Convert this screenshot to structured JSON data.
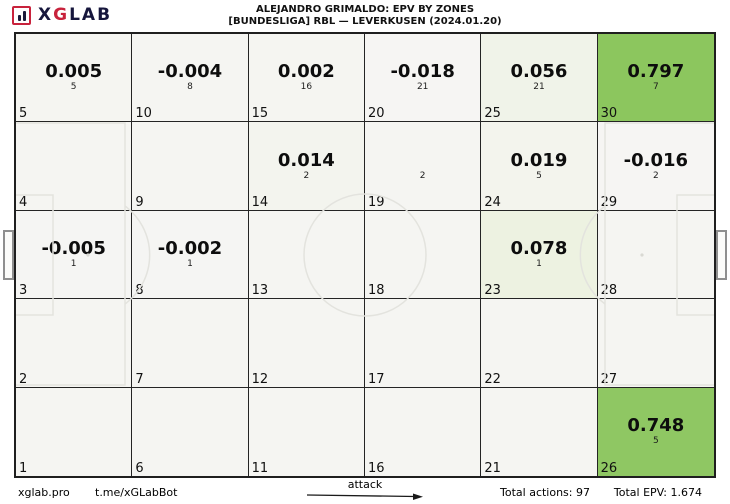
{
  "header": {
    "logo": {
      "icon": "bar-chart-icon",
      "x": "X",
      "g": "G",
      "lab": "LAB"
    },
    "title_line1": "ALEJANDRO GRIMALDO: EPV BY ZONES",
    "title_line2": "[BUNDESLIGA] RBL —  LEVERKUSEN (2024.01.20)"
  },
  "footer": {
    "site": "xglab.pro",
    "telegram": "t.me/xGLabBot",
    "attack_label": "attack",
    "total_actions": "Total actions: 97",
    "total_epv": "Total EPV: 1.674"
  },
  "colors": {
    "grid_line": "#242424",
    "pitch_border": "#1f1f1f",
    "cell_default": "#f5f5f2",
    "green_strong": "#8cc65e",
    "green_light": "#edf2e1",
    "pitch_marking": "#e3e3de",
    "brand_navy": "#16163c",
    "brand_red": "#c8223c"
  },
  "chart_data": {
    "type": "heatmap",
    "title": "ALEJANDRO GRIMALDO: EPV BY ZONES",
    "subtitle": "[BUNDESLIGA] RBL — LEVERKUSEN (2024.01.20)",
    "grid": {
      "cols": 6,
      "rows": 5,
      "numbering": "column-major, zone 1 at bottom-left, zone 30 at top-right"
    },
    "attack_direction": "left-to-right",
    "totals": {
      "actions": 97,
      "epv": 1.674
    },
    "legend_note": "each zone shows EPV value (bold), action count (small, below), zone number (bottom-left)",
    "zones_display_order": "row-major from top-left",
    "zones": [
      {
        "num": 5,
        "value": "0.005",
        "count": "5",
        "bg": "#f5f5f1"
      },
      {
        "num": 10,
        "value": "-0.004",
        "count": "8",
        "bg": "#f5f5f2"
      },
      {
        "num": 15,
        "value": "0.002",
        "count": "16",
        "bg": "#f5f5f1"
      },
      {
        "num": 20,
        "value": "-0.018",
        "count": "21",
        "bg": "#f6f5f3"
      },
      {
        "num": 25,
        "value": "0.056",
        "count": "21",
        "bg": "#f0f3e9"
      },
      {
        "num": 30,
        "value": "0.797",
        "count": "7",
        "bg": "#8cc65e"
      },
      {
        "num": 4,
        "value": "",
        "count": "",
        "bg": "#f5f5f2"
      },
      {
        "num": 9,
        "value": "",
        "count": "",
        "bg": "#f5f5f2"
      },
      {
        "num": 14,
        "value": "0.014",
        "count": "2",
        "bg": "#f3f4ee"
      },
      {
        "num": 19,
        "value": "",
        "count": "2",
        "bg": "#f5f5f2"
      },
      {
        "num": 24,
        "value": "0.019",
        "count": "5",
        "bg": "#f3f4ed"
      },
      {
        "num": 29,
        "value": "-0.016",
        "count": "2",
        "bg": "#f6f5f3"
      },
      {
        "num": 3,
        "value": "-0.005",
        "count": "1",
        "bg": "#f5f5f3"
      },
      {
        "num": 8,
        "value": "-0.002",
        "count": "1",
        "bg": "#f5f5f3"
      },
      {
        "num": 13,
        "value": "",
        "count": "",
        "bg": "#f5f5f2"
      },
      {
        "num": 18,
        "value": "",
        "count": "",
        "bg": "#f5f5f2"
      },
      {
        "num": 23,
        "value": "0.078",
        "count": "1",
        "bg": "#edf2e1"
      },
      {
        "num": 28,
        "value": "",
        "count": "",
        "bg": "#f5f5f2"
      },
      {
        "num": 2,
        "value": "",
        "count": "",
        "bg": "#f5f5f2"
      },
      {
        "num": 7,
        "value": "",
        "count": "",
        "bg": "#f5f5f2"
      },
      {
        "num": 12,
        "value": "",
        "count": "",
        "bg": "#f5f5f2"
      },
      {
        "num": 17,
        "value": "",
        "count": "",
        "bg": "#f5f5f2"
      },
      {
        "num": 22,
        "value": "",
        "count": "",
        "bg": "#f5f5f2"
      },
      {
        "num": 27,
        "value": "",
        "count": "",
        "bg": "#f5f5f2"
      },
      {
        "num": 1,
        "value": "",
        "count": "",
        "bg": "#f5f5f2"
      },
      {
        "num": 6,
        "value": "",
        "count": "",
        "bg": "#f5f5f2"
      },
      {
        "num": 11,
        "value": "",
        "count": "",
        "bg": "#f5f5f2"
      },
      {
        "num": 16,
        "value": "",
        "count": "",
        "bg": "#f5f5f2"
      },
      {
        "num": 21,
        "value": "",
        "count": "",
        "bg": "#f5f5f2"
      },
      {
        "num": 26,
        "value": "0.748",
        "count": "5",
        "bg": "#8fc763"
      }
    ]
  }
}
